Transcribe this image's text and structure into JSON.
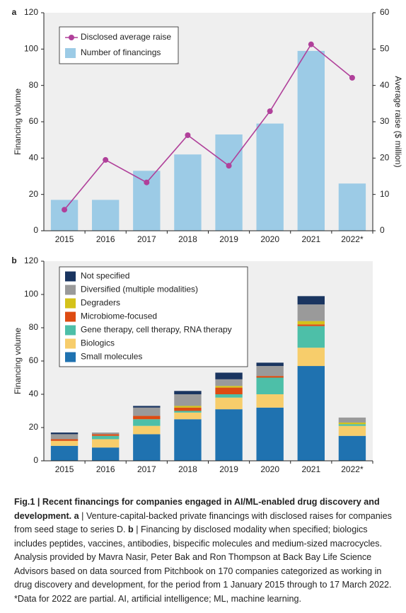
{
  "chart_data": [
    {
      "type": "combo",
      "panel": "a",
      "y_label": "Financing volume",
      "y2_label": "Average raise ($ million)",
      "categories": [
        "2015",
        "2016",
        "2017",
        "2018",
        "2019",
        "2020",
        "2021",
        "2022*"
      ],
      "series": [
        {
          "name": "Disclosed average raise",
          "type": "line",
          "axis": "y2",
          "color": "#b0409a",
          "values": [
            5.8,
            19.5,
            13.3,
            26.3,
            17.9,
            32.9,
            51.3,
            42.1
          ]
        },
        {
          "name": "Number of financings",
          "type": "bar",
          "color": "#9ccbe6",
          "values": [
            17,
            17,
            33,
            42,
            53,
            59,
            99,
            26
          ]
        }
      ],
      "ylim": [
        0,
        120
      ],
      "yticks": [
        0,
        20,
        40,
        60,
        80,
        100,
        120
      ],
      "y2lim": [
        0,
        60
      ],
      "y2ticks": [
        0,
        10,
        20,
        30,
        40,
        50,
        60
      ],
      "legend": "top-left"
    },
    {
      "type": "stacked-bar",
      "panel": "b",
      "y_label": "Financing volume",
      "categories": [
        "2015",
        "2016",
        "2017",
        "2018",
        "2019",
        "2020",
        "2021",
        "2022*"
      ],
      "series": [
        {
          "name": "Small molecules",
          "color": "#1f72b0",
          "values": [
            9,
            8,
            16,
            25,
            31,
            32,
            57,
            15
          ]
        },
        {
          "name": "Biologics",
          "color": "#f7cd6b",
          "values": [
            3,
            5,
            5,
            4,
            7,
            8,
            11,
            6
          ]
        },
        {
          "name": "Gene therapy, cell therapy, RNA therapy",
          "color": "#4dbfa8",
          "values": [
            0,
            2,
            4,
            1,
            2,
            10,
            13,
            1
          ]
        },
        {
          "name": "Microbiome-focused",
          "color": "#dd4b12",
          "values": [
            1,
            1,
            2,
            2,
            4,
            1,
            1,
            0
          ]
        },
        {
          "name": "Degraders",
          "color": "#d4c21a",
          "values": [
            0,
            0,
            0,
            1,
            1,
            0,
            2,
            1
          ]
        },
        {
          "name": "Diversified (multiple modalities)",
          "color": "#9a9a9a",
          "values": [
            3,
            1,
            5,
            7,
            4,
            6,
            10,
            3
          ]
        },
        {
          "name": "Not specified",
          "color": "#1a3560",
          "values": [
            1,
            0,
            1,
            2,
            4,
            2,
            5,
            0
          ]
        }
      ],
      "ylim": [
        0,
        120
      ],
      "yticks": [
        0,
        20,
        40,
        60,
        80,
        100,
        120
      ],
      "legend": "top-left"
    }
  ],
  "caption": [
    {
      "text": "Fig.1 | Recent financings for companies engaged in AI/ML-enabled drug discovery and development. a",
      "bold": true
    },
    {
      "text": " | Venture-capital-backed private financings with disclosed raises for companies from seed stage to series D. ",
      "bold": false
    },
    {
      "text": "b",
      "bold": true
    },
    {
      "text": " | Financing by disclosed modality when specified; biologics includes peptides, vaccines, antibodies, bispecific molecules and medium-sized macrocycles. Analysis provided by Mavra Nasir, Peter Bak and Ron Thompson at Back Bay Life Science Advisors based on data sourced from Pitchbook on 170 companies categorized as working in drug discovery and development, for the period from 1 January 2015 through to 17 March 2022. *Data for 2022 are partial. AI, artificial intelligence; ML, machine learning.",
      "bold": false
    }
  ]
}
